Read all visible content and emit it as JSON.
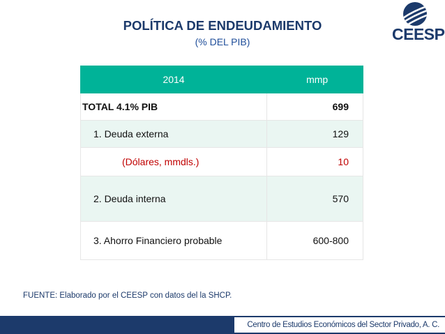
{
  "title": "POLÍTICA DE ENDEUDAMIENTO",
  "subtitle": "(% DEL PIB)",
  "logo": {
    "text": "CEESP",
    "icon": "ceesp-globe-icon",
    "color": "#1c3a6b"
  },
  "table": {
    "header": {
      "col1": "2014",
      "col2": "mmp"
    },
    "rows": [
      {
        "label": "TOTAL 4.1% PIB",
        "value": "699"
      },
      {
        "label": "1. Deuda externa",
        "value": "129"
      },
      {
        "label": "(Dólares, mmdls.)",
        "value": "10"
      },
      {
        "label": "2. Deuda interna",
        "value": "570"
      },
      {
        "label": "3. Ahorro Financiero probable",
        "value": "600-800"
      }
    ],
    "colors": {
      "header": "#00b398",
      "alt_row": "#eaf6f2",
      "highlight_text": "#c00000"
    }
  },
  "source": "FUENTE: Elaborado por el CEESP con datos del la SHCP.",
  "footer": "Centro de Estudios Económicos del Sector Privado, A. C."
}
